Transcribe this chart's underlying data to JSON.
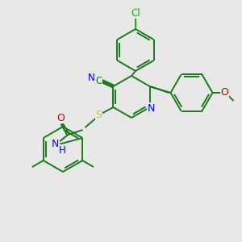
{
  "background_color": "#e8e8e8",
  "atom_colors": {
    "C": "#1a7a1a",
    "N": "#0000ff",
    "O": "#cc0000",
    "S": "#cccc00",
    "Cl": "#00bb00",
    "H": "#0000ff"
  },
  "figsize": [
    3.0,
    3.0
  ],
  "dpi": 100
}
